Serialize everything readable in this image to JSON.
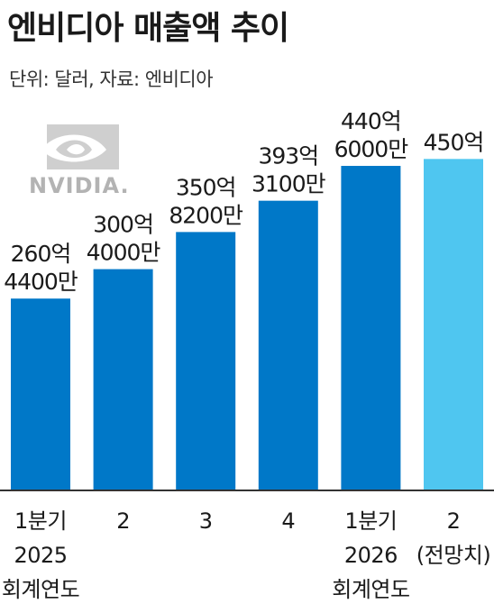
{
  "title": "엔비디아 매출액 추이",
  "unit_note": "단위: 달러, 자료: 엔비디아",
  "logo": {
    "wordmark": "NVIDIA.",
    "color": "#b3b3b3"
  },
  "colors": {
    "bar": "#0078c8",
    "forecast": "#4fc6f0",
    "axis": "#333333"
  },
  "chart_data": {
    "type": "bar",
    "title": "엔비디아 매출액 추이",
    "xlabel": "",
    "ylabel": "",
    "unit": "달러",
    "categories": [
      {
        "lines": [
          "1분기",
          "2025",
          "회계연도"
        ]
      },
      {
        "lines": [
          "2"
        ]
      },
      {
        "lines": [
          "3"
        ]
      },
      {
        "lines": [
          "4"
        ]
      },
      {
        "lines": [
          "1분기",
          "2026",
          "회계연도"
        ]
      },
      {
        "lines": [
          "2",
          "(전망치)"
        ]
      }
    ],
    "series": [
      {
        "values": [
          26044000000,
          30040000000,
          35082000000,
          39331000000,
          44060000000,
          45000000000
        ],
        "labels": [
          [
            "260억",
            "4400만"
          ],
          [
            "300억",
            "4000만"
          ],
          [
            "350억",
            "8200만"
          ],
          [
            "393억",
            "3100만"
          ],
          [
            "440억",
            "6000만"
          ],
          [
            "450억"
          ]
        ],
        "forecast": [
          false,
          false,
          false,
          false,
          false,
          true
        ]
      }
    ],
    "ylim": [
      0,
      47000000000
    ],
    "grid": false,
    "legend": "none"
  }
}
